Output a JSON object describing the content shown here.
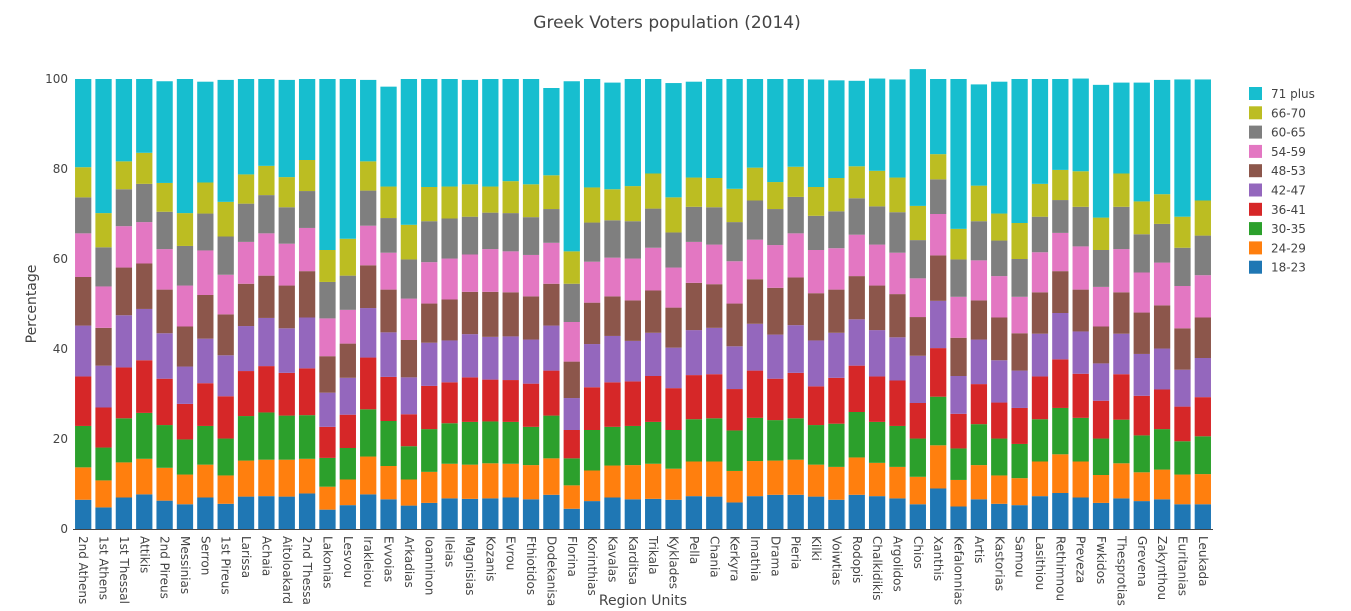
{
  "chart_data": {
    "type": "bar",
    "stacked": true,
    "title": "Greek Voters population (2014)",
    "xlabel": "Region Units",
    "ylabel": "Percentage",
    "ylim": [
      0,
      100
    ],
    "yticks": [
      0,
      20,
      40,
      60,
      80,
      100
    ],
    "grid": false,
    "legend_position": "right",
    "categories": [
      "2nd Athens",
      "1st Athens",
      "1st Thessal",
      "Attikis",
      "2nd Pireus",
      "Messinias",
      "Serron",
      "1st Pireus",
      "Larissa",
      "Achaia",
      "Aitoloakard",
      "2nd Thessa",
      "Lakonias",
      "Lesvou",
      "Irakleiou",
      "Evvoias",
      "Arkadias",
      "Ioanninon",
      "Ileias",
      "Magnisias",
      "Kozanis",
      "Evrou",
      "Fthiotidos",
      "Dodekanisa",
      "Florina",
      "Korinthias",
      "Kavalas",
      "Karditsa",
      "Trikala",
      "Kyklades",
      "Pella",
      "Chania",
      "Kerkyra",
      "Imathia",
      "Drama",
      "Pieria",
      "Kilki",
      "Voiwtias",
      "Rodopis",
      "Chalkidikis",
      "Argolidos",
      "Chios",
      "Xanthis",
      "Kefalonnias",
      "Artis",
      "Kastorias",
      "Samou",
      "Lasithiou",
      "Rethimnou",
      "Preveza",
      "Fwkidos",
      "Thesprotias",
      "Grevena",
      "Zakynthou",
      "Euritanias",
      "Leukada"
    ],
    "series": [
      {
        "name": "18-23",
        "color": "#1f77b4",
        "values": [
          6.5,
          4.8,
          7.0,
          7.7,
          6.3,
          5.5,
          7.0,
          5.6,
          7.2,
          7.3,
          7.2,
          7.9,
          4.3,
          5.3,
          7.7,
          6.6,
          5.2,
          5.8,
          6.8,
          6.7,
          6.8,
          7.0,
          6.6,
          7.6,
          4.5,
          6.2,
          7.0,
          6.6,
          6.7,
          6.5,
          7.3,
          7.2,
          5.9,
          7.3,
          7.6,
          7.6,
          7.2,
          6.5,
          7.6,
          7.3,
          6.8,
          5.5,
          9.0,
          5.0,
          6.6,
          5.6,
          5.3,
          7.3,
          8.0,
          7.0,
          5.8,
          6.8,
          6.2,
          6.6,
          5.5,
          5.5
        ]
      },
      {
        "name": "24-29",
        "color": "#ff7f0e",
        "values": [
          7.2,
          6.0,
          7.8,
          7.9,
          7.3,
          6.6,
          7.3,
          6.3,
          8.0,
          8.1,
          8.2,
          7.7,
          5.1,
          5.7,
          8.4,
          7.4,
          5.8,
          6.9,
          7.7,
          7.6,
          7.8,
          7.5,
          7.6,
          8.1,
          5.2,
          6.8,
          7.1,
          7.6,
          7.8,
          6.9,
          7.7,
          7.8,
          7.0,
          7.8,
          7.6,
          7.8,
          7.1,
          7.3,
          8.3,
          7.4,
          7.0,
          6.1,
          9.6,
          5.9,
          7.6,
          6.3,
          6.0,
          7.7,
          8.6,
          8.0,
          6.2,
          7.8,
          6.4,
          6.6,
          6.6,
          6.7
        ]
      },
      {
        "name": "30-35",
        "color": "#2ca02c",
        "values": [
          9.2,
          7.3,
          9.8,
          10.2,
          9.5,
          7.8,
          8.6,
          8.2,
          9.9,
          10.5,
          9.8,
          9.7,
          6.4,
          7.0,
          10.5,
          10.0,
          7.4,
          9.5,
          9.0,
          9.5,
          9.3,
          9.3,
          8.5,
          9.5,
          6.0,
          9.0,
          8.6,
          8.7,
          9.3,
          8.6,
          9.4,
          9.6,
          9.0,
          9.6,
          9.0,
          9.2,
          8.8,
          9.6,
          10.1,
          9.1,
          9.1,
          8.5,
          10.8,
          7.0,
          9.1,
          8.2,
          7.6,
          9.4,
          10.3,
          9.7,
          8.1,
          9.7,
          8.2,
          9.0,
          7.4,
          8.4
        ]
      },
      {
        "name": "36-41",
        "color": "#d62728",
        "values": [
          11.0,
          8.9,
          11.3,
          11.7,
          10.3,
          7.9,
          9.5,
          9.4,
          10.0,
          10.3,
          9.5,
          10.4,
          6.9,
          7.4,
          11.5,
          9.8,
          7.1,
          9.6,
          9.1,
          9.9,
          9.3,
          9.3,
          9.6,
          10.0,
          6.3,
          9.5,
          9.9,
          9.9,
          10.2,
          9.3,
          9.8,
          9.8,
          9.2,
          10.5,
          9.2,
          10.1,
          8.6,
          10.2,
          10.3,
          10.1,
          10.1,
          7.9,
          10.8,
          7.7,
          8.9,
          8.0,
          8.0,
          9.5,
          10.8,
          9.8,
          8.4,
          10.1,
          8.8,
          8.8,
          7.7,
          8.7
        ]
      },
      {
        "name": "42-47",
        "color": "#9467bd",
        "values": [
          11.3,
          9.3,
          11.6,
          11.4,
          10.1,
          8.3,
          9.9,
          9.1,
          10.0,
          10.7,
          9.9,
          11.3,
          7.6,
          8.2,
          11.0,
          9.9,
          8.2,
          9.6,
          9.3,
          9.6,
          9.5,
          9.7,
          9.8,
          10.0,
          7.1,
          9.6,
          10.3,
          9.0,
          9.6,
          9.0,
          10.0,
          10.3,
          9.5,
          10.4,
          9.8,
          10.6,
          10.2,
          10.0,
          10.3,
          10.3,
          9.6,
          10.5,
          10.5,
          8.4,
          9.9,
          9.4,
          8.3,
          9.5,
          10.3,
          9.4,
          8.3,
          9.0,
          9.3,
          9.1,
          8.2,
          8.7
        ]
      },
      {
        "name": "48-53",
        "color": "#8c564b",
        "values": [
          10.8,
          8.4,
          10.6,
          10.1,
          9.7,
          8.9,
          9.7,
          9.1,
          9.4,
          9.4,
          9.5,
          10.3,
          8.1,
          7.6,
          9.5,
          9.5,
          8.3,
          8.7,
          9.1,
          9.4,
          10.0,
          9.8,
          9.6,
          9.3,
          8.1,
          9.2,
          8.8,
          9.0,
          9.4,
          8.9,
          10.5,
          9.7,
          9.5,
          9.9,
          10.4,
          10.6,
          10.5,
          9.6,
          9.6,
          9.9,
          9.6,
          8.6,
          10.1,
          8.5,
          8.7,
          9.5,
          8.3,
          9.2,
          9.3,
          9.3,
          8.2,
          9.2,
          9.2,
          9.6,
          9.2,
          9.0
        ]
      },
      {
        "name": "54-59",
        "color": "#e377c2",
        "values": [
          9.7,
          9.2,
          9.2,
          9.2,
          9.0,
          9.1,
          9.9,
          8.8,
          9.3,
          9.4,
          9.3,
          9.6,
          8.4,
          7.5,
          8.8,
          8.2,
          9.2,
          9.2,
          9.1,
          8.3,
          9.5,
          9.1,
          9.2,
          9.1,
          8.8,
          9.1,
          8.6,
          9.3,
          9.5,
          8.9,
          9.1,
          8.8,
          9.4,
          8.8,
          9.5,
          9.8,
          9.6,
          9.2,
          9.2,
          9.1,
          9.2,
          8.6,
          9.2,
          9.1,
          8.9,
          9.2,
          8.1,
          8.9,
          8.5,
          9.6,
          8.8,
          9.6,
          8.9,
          9.5,
          9.4,
          9.4
        ]
      },
      {
        "name": "60-65",
        "color": "#7f7f7f",
        "values": [
          8.0,
          8.7,
          8.2,
          8.5,
          8.3,
          8.8,
          8.2,
          8.5,
          8.5,
          8.5,
          8.1,
          8.2,
          8.1,
          7.6,
          7.8,
          7.7,
          8.7,
          9.1,
          8.9,
          8.4,
          8.1,
          8.5,
          8.4,
          7.5,
          8.5,
          8.7,
          8.3,
          8.3,
          8.7,
          7.8,
          7.8,
          8.3,
          8.7,
          8.7,
          8.0,
          8.1,
          7.6,
          8.2,
          8.1,
          8.5,
          9.0,
          8.5,
          7.7,
          8.3,
          8.7,
          7.9,
          8.4,
          7.9,
          7.3,
          8.8,
          8.2,
          9.4,
          8.5,
          8.6,
          8.5,
          8.8
        ]
      },
      {
        "name": "66-70",
        "color": "#bcbd22",
        "values": [
          6.7,
          7.6,
          6.2,
          6.9,
          6.4,
          7.3,
          6.9,
          7.7,
          6.5,
          6.5,
          6.7,
          6.9,
          7.1,
          8.2,
          6.5,
          7.0,
          7.7,
          7.6,
          7.1,
          7.2,
          5.8,
          7.1,
          7.3,
          7.5,
          7.2,
          7.8,
          6.9,
          7.8,
          7.8,
          7.8,
          6.5,
          6.5,
          7.4,
          7.3,
          6.0,
          6.7,
          6.4,
          7.4,
          7.1,
          7.9,
          7.7,
          7.6,
          5.6,
          6.8,
          7.9,
          6.0,
          8.0,
          7.3,
          6.7,
          7.9,
          7.2,
          7.4,
          7.3,
          6.6,
          6.9,
          7.8
        ]
      },
      {
        "name": "71 plus",
        "color": "#17becf",
        "values": [
          19.6,
          29.8,
          18.3,
          16.4,
          22.6,
          29.8,
          22.4,
          27.1,
          21.2,
          19.3,
          21.6,
          18.0,
          38.0,
          35.5,
          18.1,
          22.2,
          32.4,
          24.0,
          23.9,
          23.2,
          23.9,
          22.7,
          23.4,
          19.4,
          37.8,
          24.1,
          23.7,
          23.8,
          21.0,
          25.4,
          21.3,
          22.0,
          24.4,
          19.7,
          22.9,
          19.5,
          23.9,
          21.7,
          19.0,
          20.5,
          21.8,
          30.4,
          16.7,
          33.3,
          22.5,
          29.3,
          32.0,
          23.3,
          20.2,
          20.6,
          29.5,
          20.2,
          26.4,
          25.4,
          30.5,
          26.9
        ]
      }
    ]
  }
}
